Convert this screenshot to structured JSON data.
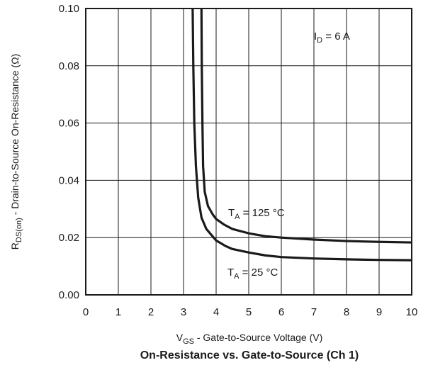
{
  "chart_data": {
    "type": "line",
    "title": "On-Resistance vs. Gate-to-Source (Ch 1)",
    "xlabel": {
      "main": "V",
      "sub": "GS",
      "rest": " - Gate-to-Source Voltage (V)"
    },
    "ylabel": {
      "main": "R",
      "sub": "DS(on)",
      "rest": " - Drain-to-Source On-Resistance (Ω)"
    },
    "xlim": [
      0,
      10
    ],
    "ylim": [
      0,
      0.1
    ],
    "x_ticks": [
      0,
      1,
      2,
      3,
      4,
      5,
      6,
      7,
      8,
      9,
      10
    ],
    "y_ticks": [
      "0.00",
      "0.02",
      "0.04",
      "0.06",
      "0.08",
      "0.10"
    ],
    "grid": true,
    "annotations": [
      {
        "main": "I",
        "sub": "D",
        "rest": " = 6 A"
      },
      {
        "main": "T",
        "sub": "A",
        "rest": " = 125 °C"
      },
      {
        "main": "T",
        "sub": "A",
        "rest": " = 25 °C"
      }
    ],
    "series": [
      {
        "x": [
          3.28,
          3.3,
          3.33,
          3.38,
          3.45,
          3.55,
          3.7,
          3.85,
          4.0,
          4.3,
          4.5,
          5.0,
          5.5,
          6.0,
          7.0,
          8.0,
          9.0,
          10.0
        ],
        "y": [
          0.1,
          0.08,
          0.06,
          0.045,
          0.034,
          0.027,
          0.023,
          0.021,
          0.019,
          0.017,
          0.016,
          0.0148,
          0.0138,
          0.0132,
          0.0127,
          0.0124,
          0.0122,
          0.0121
        ]
      },
      {
        "x": [
          3.55,
          3.56,
          3.58,
          3.6,
          3.65,
          3.75,
          3.9,
          4.0,
          4.25,
          4.5,
          5.0,
          5.5,
          6.0,
          7.0,
          8.0,
          9.0,
          10.0
        ],
        "y": [
          0.1,
          0.08,
          0.06,
          0.045,
          0.036,
          0.031,
          0.028,
          0.0265,
          0.0245,
          0.023,
          0.0215,
          0.0205,
          0.02,
          0.0193,
          0.0188,
          0.0185,
          0.0183
        ]
      }
    ]
  }
}
